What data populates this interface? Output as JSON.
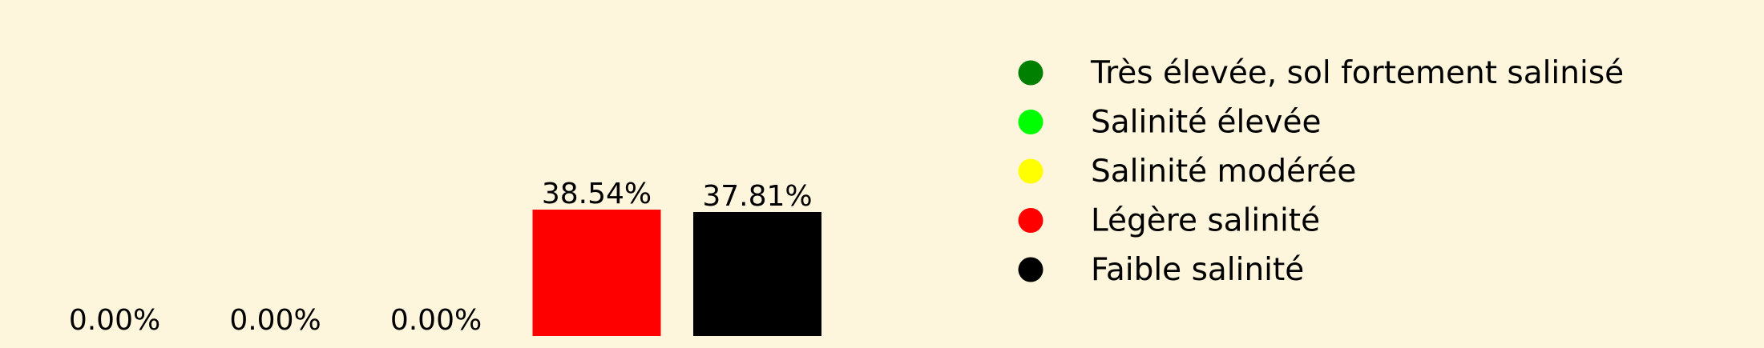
{
  "chart_data": {
    "type": "bar",
    "categories": [
      "Très élevée, sol fortement salinisé",
      "Salinité élevée",
      "Salinité modérée",
      "Légère salinité",
      "Faible salinité"
    ],
    "values": [
      0.0,
      0.0,
      0.0,
      38.54,
      37.81
    ],
    "value_labels": [
      "0.00%",
      "0.00%",
      "0.00%",
      "38.54%",
      "37.81%"
    ],
    "colors": [
      "#008000",
      "#00ff00",
      "#ffff00",
      "#ff0000",
      "#000000"
    ],
    "unit": "%",
    "ylim": [
      0,
      40
    ],
    "grid": false,
    "legend": {
      "placement": "right",
      "marker": "circle",
      "labels": [
        "Très élevée, sol fortement salinisé",
        "Salinité élevée",
        "Salinité modérée",
        "Légère salinité",
        "Faible salinité"
      ]
    },
    "title": "",
    "xlabel": "",
    "ylabel": ""
  }
}
